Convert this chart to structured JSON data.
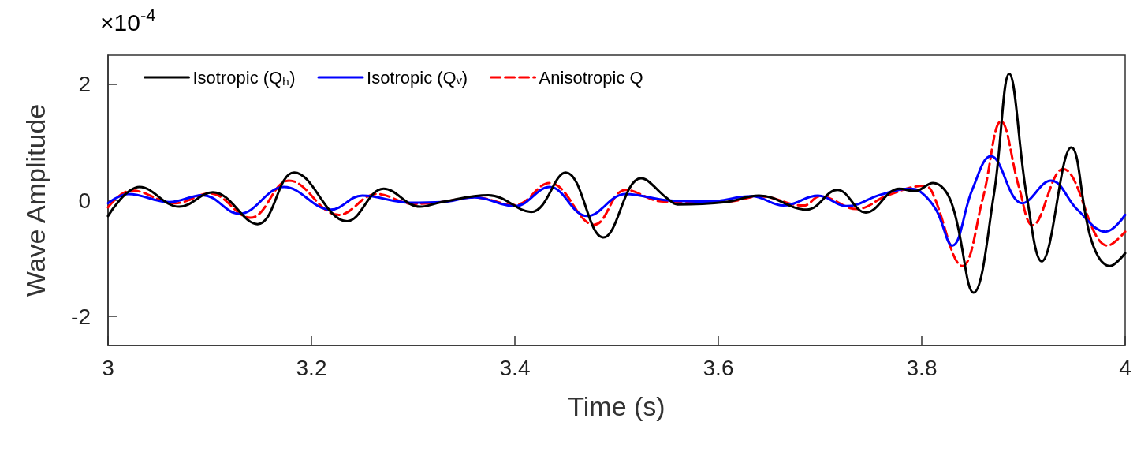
{
  "chart_data": {
    "type": "line",
    "xlabel": "Time (s)",
    "ylabel": "Wave Amplitude",
    "annotations": [
      "×10$^{-4}$"
    ],
    "xlim": [
      3,
      4
    ],
    "xticks": [
      3,
      3.2,
      3.4,
      3.6,
      3.8,
      4
    ],
    "ylim": [
      -2.5,
      2.5
    ],
    "yticks": [
      -2,
      0,
      2
    ],
    "grid": false,
    "legend": "top left",
    "marker": "none",
    "series": [
      {
        "name": "Isotropic (Qₕ)",
        "color": "#000000",
        "line_style": "solid",
        "x": [
          3.0,
          3.031,
          3.07,
          3.103,
          3.147,
          3.183,
          3.235,
          3.271,
          3.307,
          3.328,
          3.374,
          3.416,
          3.45,
          3.487,
          3.524,
          3.55,
          3.56,
          3.607,
          3.64,
          3.687,
          3.717,
          3.745,
          3.778,
          3.793,
          3.811,
          3.829,
          3.851,
          3.871,
          3.886,
          3.903,
          3.918,
          3.947,
          3.967,
          3.985,
          4.0
        ],
        "values": [
          -0.27,
          0.23,
          -0.11,
          0.14,
          -0.41,
          0.48,
          -0.36,
          0.2,
          -0.11,
          -0.03,
          0.09,
          -0.2,
          0.48,
          -0.64,
          0.38,
          0.03,
          -0.07,
          -0.03,
          0.08,
          -0.16,
          0.18,
          -0.21,
          0.2,
          0.16,
          0.3,
          -0.03,
          -1.59,
          0.11,
          2.18,
          0.1,
          -1.05,
          0.91,
          -0.7,
          -1.13,
          -0.91
        ]
      },
      {
        "name": "Isotropic (Qᵥ)",
        "color": "#0000ff",
        "line_style": "solid",
        "x": [
          3.0,
          3.02,
          3.06,
          3.093,
          3.129,
          3.173,
          3.219,
          3.25,
          3.297,
          3.328,
          3.36,
          3.4,
          3.434,
          3.471,
          3.509,
          3.55,
          3.59,
          3.633,
          3.664,
          3.698,
          3.726,
          3.76,
          3.788,
          3.798,
          3.814,
          3.83,
          3.85,
          3.868,
          3.899,
          3.927,
          3.953,
          3.981,
          4.0
        ],
        "values": [
          -0.05,
          0.11,
          -0.03,
          0.09,
          -0.23,
          0.23,
          -0.16,
          0.08,
          -0.04,
          -0.03,
          0.05,
          -0.1,
          0.23,
          -0.27,
          0.11,
          0.0,
          -0.02,
          0.07,
          -0.09,
          0.08,
          -0.1,
          0.1,
          0.2,
          0.16,
          -0.16,
          -0.78,
          0.2,
          0.76,
          -0.05,
          0.34,
          -0.16,
          -0.54,
          -0.25
        ]
      },
      {
        "name": "Anisotropic Q",
        "color": "#ff0000",
        "line_style": "dashed",
        "x": [
          3.0,
          3.023,
          3.066,
          3.1,
          3.14,
          3.178,
          3.227,
          3.264,
          3.3,
          3.328,
          3.36,
          3.4,
          3.434,
          3.478,
          3.509,
          3.546,
          3.61,
          3.64,
          3.684,
          3.7,
          3.736,
          3.767,
          3.803,
          3.81,
          3.84,
          3.86,
          3.878,
          3.896,
          3.909,
          3.939,
          3.983,
          4.0
        ],
        "values": [
          -0.12,
          0.17,
          -0.05,
          0.12,
          -0.3,
          0.34,
          -0.25,
          0.11,
          -0.06,
          -0.03,
          0.05,
          -0.08,
          0.3,
          -0.42,
          0.18,
          -0.02,
          -0.02,
          0.07,
          -0.09,
          0.07,
          -0.15,
          0.09,
          0.25,
          0.15,
          -1.13,
          0.03,
          1.36,
          0.2,
          -0.43,
          0.54,
          -0.78,
          -0.54
        ]
      }
    ]
  }
}
